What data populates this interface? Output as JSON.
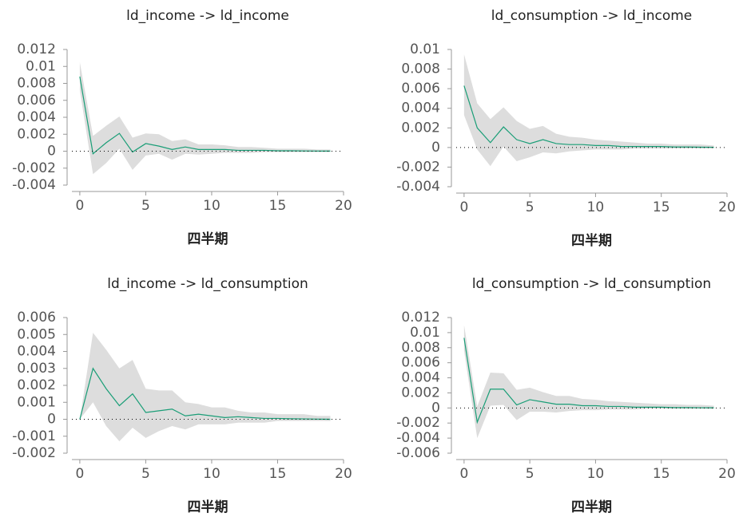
{
  "chart_data": [
    {
      "type": "line",
      "title": "ld_income -> ld_income",
      "xlabel": "四半期",
      "x": [
        0,
        1,
        2,
        3,
        4,
        5,
        6,
        7,
        8,
        9,
        10,
        11,
        12,
        13,
        14,
        15,
        16,
        17,
        18,
        19
      ],
      "xlim": [
        -0.6,
        20
      ],
      "xticks": [
        0,
        5,
        10,
        15,
        20
      ],
      "ylim": [
        -0.004,
        0.012
      ],
      "yticks": [
        -0.004,
        -0.002,
        0,
        0.002,
        0.004,
        0.006,
        0.008,
        0.01,
        0.012
      ],
      "series": [
        {
          "color": "#1a9e77",
          "band_color": "#dddddd",
          "values": [
            0.0088,
            -0.0003,
            0.001,
            0.0021,
            -0.0001,
            0.0009,
            0.0006,
            0.0002,
            0.0005,
            0.0002,
            0.0002,
            0.0002,
            0.0001,
            0.0001,
            0.0001,
            5e-05,
            5e-05,
            3e-05,
            2e-05,
            1e-05
          ],
          "upper": [
            0.0105,
            0.0018,
            0.003,
            0.0041,
            0.0016,
            0.0021,
            0.002,
            0.0012,
            0.0014,
            0.0008,
            0.0008,
            0.0007,
            0.0005,
            0.0005,
            0.0004,
            0.0003,
            0.0003,
            0.0003,
            0.0002,
            0.0002
          ],
          "lower": [
            0.0072,
            -0.0027,
            -0.0014,
            0.0003,
            -0.0022,
            -0.0005,
            -0.0003,
            -0.001,
            -0.0003,
            -0.0004,
            -0.0003,
            -0.0002,
            -0.0002,
            -0.0002,
            -0.0001,
            -0.0001,
            -0.0001,
            -0.0001,
            -0.0001,
            -0.0001
          ]
        }
      ]
    },
    {
      "type": "line",
      "title": "ld_consumption -> ld_income",
      "xlabel": "四半期",
      "x": [
        0,
        1,
        2,
        3,
        4,
        5,
        6,
        7,
        8,
        9,
        10,
        11,
        12,
        13,
        14,
        15,
        16,
        17,
        18,
        19
      ],
      "xlim": [
        -0.6,
        20
      ],
      "xticks": [
        0,
        5,
        10,
        15,
        20
      ],
      "ylim": [
        -0.004,
        0.01
      ],
      "yticks": [
        -0.004,
        -0.002,
        0,
        0.002,
        0.004,
        0.006,
        0.008,
        0.01
      ],
      "series": [
        {
          "color": "#1a9e77",
          "band_color": "#dddddd",
          "values": [
            0.0063,
            0.002,
            0.0005,
            0.0021,
            0.0008,
            0.0004,
            0.0008,
            0.0004,
            0.0003,
            0.0003,
            0.0002,
            0.0002,
            0.0001,
            0.0001,
            0.0001,
            0.0001,
            5e-05,
            5e-05,
            3e-05,
            2e-05
          ],
          "upper": [
            0.0095,
            0.0045,
            0.0029,
            0.0041,
            0.0027,
            0.0019,
            0.0022,
            0.0014,
            0.0011,
            0.001,
            0.0008,
            0.0007,
            0.0006,
            0.0005,
            0.0004,
            0.0004,
            0.0003,
            0.0003,
            0.0003,
            0.0002
          ],
          "lower": [
            0.0033,
            -0.0002,
            -0.0019,
            0.0001,
            -0.0014,
            -0.001,
            -0.0005,
            -0.0006,
            -0.0004,
            -0.0003,
            -0.0002,
            -0.0002,
            -0.0002,
            -0.0001,
            -0.0001,
            -0.0001,
            -0.0001,
            -0.0001,
            -0.0001,
            -0.0001
          ]
        }
      ]
    },
    {
      "type": "line",
      "title": "ld_income -> ld_consumption",
      "xlabel": "四半期",
      "x": [
        0,
        1,
        2,
        3,
        4,
        5,
        6,
        7,
        8,
        9,
        10,
        11,
        12,
        13,
        14,
        15,
        16,
        17,
        18,
        19
      ],
      "xlim": [
        -0.6,
        20
      ],
      "xticks": [
        0,
        5,
        10,
        15,
        20
      ],
      "ylim": [
        -0.002,
        0.006
      ],
      "yticks": [
        -0.002,
        -0.001,
        0,
        0.001,
        0.002,
        0.003,
        0.004,
        0.005,
        0.006
      ],
      "series": [
        {
          "color": "#1a9e77",
          "band_color": "#dddddd",
          "values": [
            0,
            0.003,
            0.0018,
            0.0008,
            0.0015,
            0.0004,
            0.0005,
            0.0006,
            0.0002,
            0.0003,
            0.0002,
            0.0001,
            0.00015,
            0.0001,
            5e-05,
            5e-05,
            3e-05,
            2e-05,
            1e-05,
            0
          ],
          "upper": [
            0,
            0.0051,
            0.0041,
            0.003,
            0.0035,
            0.0018,
            0.0017,
            0.0017,
            0.001,
            0.0009,
            0.0007,
            0.0007,
            0.0005,
            0.0004,
            0.0004,
            0.0003,
            0.0003,
            0.0003,
            0.0002,
            0.0002
          ],
          "lower": [
            0,
            0.001,
            -0.0004,
            -0.0013,
            -0.0005,
            -0.0011,
            -0.0007,
            -0.0004,
            -0.0006,
            -0.0003,
            -0.0003,
            -0.0003,
            -0.0002,
            -0.0002,
            -0.0002,
            -0.0001,
            -0.0001,
            -0.0001,
            -0.0001,
            -0.0001
          ]
        }
      ]
    },
    {
      "type": "line",
      "title": "ld_consumption -> ld_consumption",
      "xlabel": "四半期",
      "x": [
        0,
        1,
        2,
        3,
        4,
        5,
        6,
        7,
        8,
        9,
        10,
        11,
        12,
        13,
        14,
        15,
        16,
        17,
        18,
        19
      ],
      "xlim": [
        -0.6,
        20
      ],
      "xticks": [
        0,
        5,
        10,
        15,
        20
      ],
      "ylim": [
        -0.006,
        0.012
      ],
      "yticks": [
        -0.006,
        -0.004,
        -0.002,
        0,
        0.002,
        0.004,
        0.006,
        0.008,
        0.01,
        0.012
      ],
      "series": [
        {
          "color": "#1a9e77",
          "band_color": "#dddddd",
          "values": [
            0.0093,
            -0.0019,
            0.0025,
            0.0025,
            0.0004,
            0.0011,
            0.0008,
            0.0005,
            0.0005,
            0.0003,
            0.0003,
            0.0002,
            0.0002,
            0.0001,
            0.0001,
            0.0001,
            5e-05,
            5e-05,
            3e-05,
            2e-05
          ],
          "upper": [
            0.011,
            0.0002,
            0.0047,
            0.0046,
            0.0024,
            0.0027,
            0.0021,
            0.0016,
            0.0016,
            0.0012,
            0.0011,
            0.0009,
            0.0008,
            0.0007,
            0.0006,
            0.0005,
            0.0005,
            0.0004,
            0.0004,
            0.0003
          ],
          "lower": [
            0.0076,
            -0.004,
            0.0003,
            0.0004,
            -0.0016,
            -0.0005,
            -0.0005,
            -0.0006,
            -0.0004,
            -0.0003,
            -0.0003,
            -0.0002,
            -0.0002,
            -0.0002,
            -0.0001,
            -0.0001,
            -0.0001,
            -0.0001,
            -0.0001,
            -0.0001
          ]
        }
      ]
    }
  ]
}
